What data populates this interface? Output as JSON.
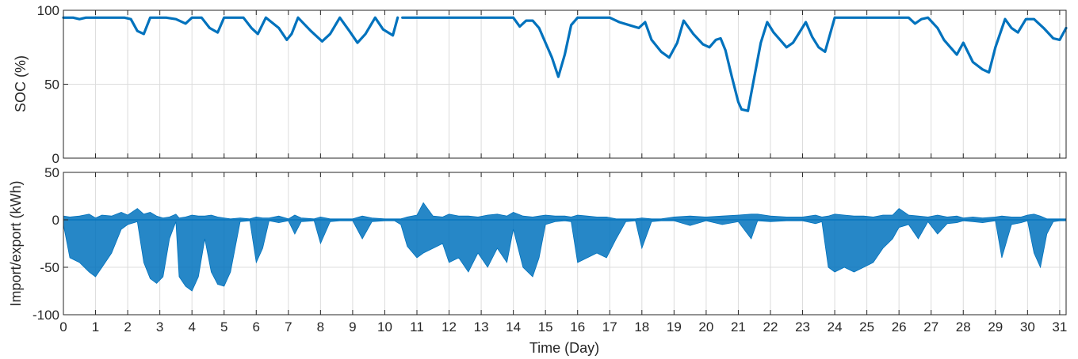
{
  "chart_data": [
    {
      "type": "line",
      "panel": "top",
      "ylabel": "SOC (%)",
      "xlabel": "",
      "xlim": [
        0,
        31.2
      ],
      "ylim": [
        0,
        100
      ],
      "yticks": [
        0,
        50,
        100
      ],
      "xticks": [
        0,
        1,
        2,
        3,
        4,
        5,
        6,
        7,
        8,
        9,
        10,
        11,
        12,
        13,
        14,
        15,
        16,
        17,
        18,
        19,
        20,
        21,
        22,
        23,
        24,
        25,
        26,
        27,
        28,
        29,
        30,
        31
      ],
      "grid": true,
      "color": "#0072BD",
      "series": [
        {
          "x": [
            0,
            0.3,
            0.5,
            0.7,
            1,
            1.5,
            1.9,
            2.1,
            2.3,
            2.5,
            2.7,
            2.9,
            3.2,
            3.5,
            3.8,
            4,
            4.3,
            4.55,
            4.8,
            5,
            5.3,
            5.6,
            5.85,
            6.05,
            6.3,
            6.7,
            6.95,
            7.1,
            7.3,
            7.7,
            8.05,
            8.3,
            8.6,
            8.9,
            9.15,
            9.4,
            9.7,
            9.95,
            10.25,
            10.4
          ],
          "y": [
            95,
            95,
            94,
            95,
            95,
            95,
            95,
            94,
            86,
            84,
            95,
            95,
            95,
            94,
            91,
            95,
            95,
            88,
            85,
            95,
            95,
            95,
            88,
            84,
            95,
            88,
            80,
            84,
            95,
            86,
            79,
            84,
            95,
            86,
            78,
            84,
            95,
            87,
            83,
            95
          ]
        },
        {
          "x": [
            10.55,
            11,
            12,
            13,
            14,
            14.2,
            14.4,
            14.6,
            14.8,
            15,
            15.2,
            15.4,
            15.6,
            15.8,
            16,
            16.5,
            17,
            17.3,
            17.6,
            17.9,
            18.1,
            18.3,
            18.6,
            18.85,
            19.1,
            19.3,
            19.6,
            19.9,
            20.1,
            20.3,
            20.45,
            20.6,
            20.8,
            21,
            21.1,
            21.3,
            21.5,
            21.7,
            21.9,
            22.1,
            22.3,
            22.5,
            22.7,
            22.9,
            23.1,
            23.3,
            23.5,
            23.7,
            24,
            25,
            26,
            26.3,
            26.5,
            26.7,
            26.9,
            27.2,
            27.4,
            27.6,
            27.8,
            28,
            28.3,
            28.6,
            28.8,
            29,
            29.3,
            29.5,
            29.7,
            29.95,
            30.2,
            30.5,
            30.8,
            31,
            31.2
          ],
          "y": [
            95,
            95,
            95,
            95,
            95,
            89,
            93,
            93,
            88,
            78,
            68,
            55,
            70,
            90,
            95,
            95,
            95,
            92,
            90,
            88,
            92,
            80,
            72,
            68,
            78,
            93,
            84,
            77,
            75,
            80,
            81,
            73,
            55,
            38,
            33,
            32,
            55,
            78,
            92,
            85,
            80,
            75,
            78,
            85,
            92,
            82,
            75,
            72,
            95,
            95,
            95,
            95,
            91,
            94,
            95,
            88,
            80,
            75,
            70,
            78,
            65,
            60,
            58,
            75,
            94,
            88,
            85,
            94,
            94,
            88,
            81,
            80,
            88
          ]
        }
      ]
    },
    {
      "type": "area",
      "panel": "bottom",
      "xlabel": "Time (Day)",
      "ylabel": "Import/export (kWh)",
      "xlim": [
        0,
        31.2
      ],
      "ylim": [
        -100,
        50
      ],
      "yticks": [
        -100,
        -50,
        0,
        50
      ],
      "xticks": [
        0,
        1,
        2,
        3,
        4,
        5,
        6,
        7,
        8,
        9,
        10,
        11,
        12,
        13,
        14,
        15,
        16,
        17,
        18,
        19,
        20,
        21,
        22,
        23,
        24,
        25,
        26,
        27,
        28,
        29,
        30,
        31
      ],
      "grid": true,
      "color": "#0072BD",
      "envelope_x": [
        0,
        0.2,
        0.5,
        0.8,
        1,
        1.2,
        1.5,
        1.8,
        2,
        2.3,
        2.5,
        2.7,
        2.9,
        3.1,
        3.3,
        3.5,
        3.6,
        3.8,
        4,
        4.2,
        4.4,
        4.6,
        4.8,
        5,
        5.2,
        5.5,
        5.8,
        6,
        6.2,
        6.4,
        6.7,
        7,
        7.2,
        7.4,
        7.8,
        8,
        8.3,
        8.6,
        9,
        9.3,
        9.6,
        10,
        10.3,
        10.5,
        10.7,
        11,
        11.2,
        11.5,
        11.8,
        12,
        12.3,
        12.6,
        12.9,
        13.2,
        13.5,
        13.8,
        14,
        14.3,
        14.6,
        14.8,
        15,
        15.3,
        15.6,
        15.8,
        16,
        16.3,
        16.6,
        16.9,
        17.2,
        17.5,
        17.8,
        18,
        18.3,
        18.6,
        19,
        19.5,
        20,
        20.5,
        21,
        21.4,
        21.6,
        22,
        22.5,
        23,
        23.4,
        23.6,
        23.8,
        24,
        24.3,
        24.6,
        24.9,
        25.2,
        25.5,
        25.8,
        26,
        26.3,
        26.6,
        26.9,
        27.2,
        27.5,
        27.8,
        28,
        28.3,
        28.6,
        29,
        29.2,
        29.5,
        29.8,
        30,
        30.2,
        30.4,
        30.6,
        30.8,
        31,
        31.2
      ],
      "envelope_min": [
        -5,
        -40,
        -45,
        -55,
        -60,
        -50,
        -35,
        -10,
        -5,
        -2,
        -45,
        -62,
        -67,
        -60,
        -20,
        -2,
        -60,
        -70,
        -75,
        -60,
        -20,
        -55,
        -68,
        -70,
        -55,
        -2,
        -1,
        -45,
        -30,
        -1,
        -3,
        -1,
        -15,
        -2,
        -1,
        -25,
        -2,
        -1,
        -1,
        -20,
        -2,
        -1,
        -1,
        -5,
        -28,
        -40,
        -35,
        -30,
        -25,
        -45,
        -40,
        -55,
        -35,
        -50,
        -30,
        -45,
        -10,
        -50,
        -60,
        -40,
        -5,
        -2,
        -1,
        -2,
        -45,
        -40,
        -35,
        -40,
        -20,
        -2,
        -1,
        -30,
        -2,
        -1,
        -1,
        -6,
        -1,
        -5,
        -2,
        -20,
        -1,
        -2,
        -1,
        -1,
        -4,
        -2,
        -50,
        -55,
        -50,
        -55,
        -50,
        -45,
        -30,
        -20,
        -8,
        -5,
        -20,
        -2,
        -15,
        -4,
        -3,
        -1,
        -2,
        -3,
        -1,
        -40,
        -5,
        -3,
        -1,
        -35,
        -50,
        -15,
        -2,
        -1,
        -1
      ],
      "envelope_max": [
        4,
        3,
        4,
        6,
        2,
        5,
        4,
        8,
        5,
        12,
        6,
        8,
        4,
        2,
        3,
        6,
        2,
        3,
        5,
        4,
        4,
        5,
        3,
        2,
        1,
        2,
        1,
        3,
        2,
        2,
        4,
        1,
        5,
        2,
        1,
        3,
        1,
        1,
        1,
        4,
        2,
        1,
        1,
        1,
        3,
        5,
        18,
        4,
        3,
        6,
        4,
        4,
        3,
        5,
        6,
        4,
        8,
        4,
        3,
        4,
        5,
        4,
        4,
        3,
        5,
        4,
        3,
        3,
        1,
        1,
        1,
        2,
        1,
        1,
        3,
        4,
        3,
        4,
        5,
        6,
        6,
        4,
        3,
        3,
        5,
        3,
        4,
        6,
        5,
        4,
        4,
        3,
        5,
        5,
        12,
        5,
        4,
        3,
        5,
        3,
        4,
        2,
        3,
        2,
        3,
        4,
        3,
        3,
        5,
        6,
        4,
        1,
        1,
        1,
        1
      ]
    }
  ]
}
